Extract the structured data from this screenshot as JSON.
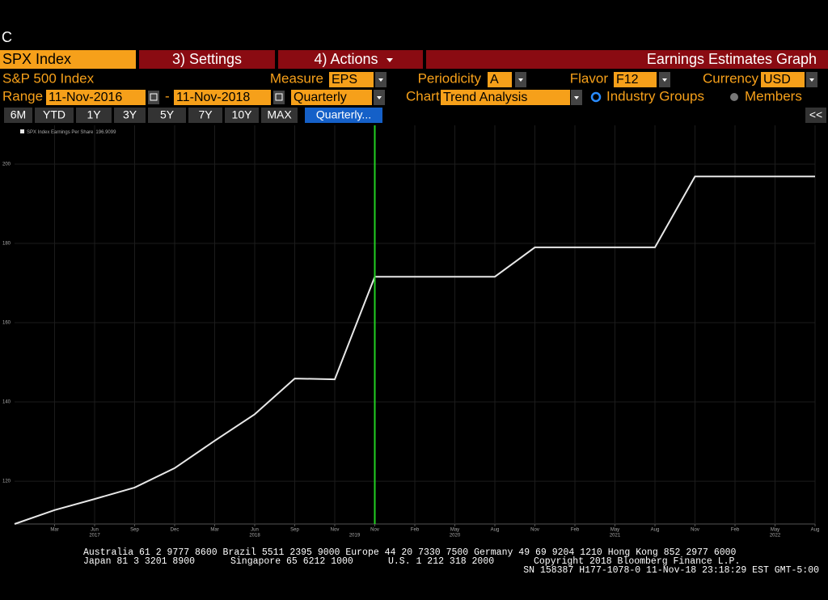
{
  "screen": {
    "corner_letter": "C",
    "tabs": {
      "security": "SPX Index",
      "settings": "3) Settings",
      "actions": "4) Actions",
      "function_title": "Earnings Estimates Graph"
    },
    "row2": {
      "security_name": "S&P 500 Index",
      "measure_label": "Measure",
      "measure": "EPS",
      "periodicity_label": "Periodicity",
      "periodicity": "A",
      "flavor_label": "Flavor",
      "flavor": "F12",
      "currency_label": "Currency",
      "currency": "USD"
    },
    "row3": {
      "range_label": "Range",
      "start": "11-Nov-2016",
      "dash": "-",
      "end": "11-Nov-2018",
      "frequency": "Quarterly",
      "chart_label": "Chart",
      "chart_kind": "Trend Analysis",
      "option_selected": "Industry Groups",
      "option_other": "Members"
    },
    "buttons": [
      "6M",
      "YTD",
      "1Y",
      "3Y",
      "5Y",
      "7Y",
      "10Y",
      "MAX"
    ],
    "active_button": "Quarterly...",
    "collapse": "<<",
    "footer": {
      "line1": "Australia 61 2 9777 8600 Brazil 5511 2395 9000 Europe 44 20 7330 7500 Germany 49 69 9204 1210 Hong Kong 852 2977 6000",
      "line2": [
        "Japan 81 3 3201 8900",
        "Singapore 65 6212 1000",
        "U.S. 1 212 318 2000",
        "Copyright 2018 Bloomberg Finance L.P."
      ],
      "line3": "SN 158387 H177-1078-0 11-Nov-18 23:18:29 EST  GMT-5:00"
    }
  },
  "chart_data": {
    "type": "line",
    "categories": [
      null,
      "Mar",
      "Jun",
      "Sep",
      "Dec",
      "Mar",
      "Jun",
      "Sep",
      "Nov",
      "Nov",
      "Feb",
      "May",
      "Aug",
      "Nov",
      "Feb",
      "May",
      "Aug",
      "Nov",
      "Feb",
      "May",
      "Aug"
    ],
    "years": [
      null,
      null,
      "2017",
      null,
      null,
      null,
      "2018",
      null,
      null,
      "2019",
      null,
      "2020",
      null,
      null,
      null,
      "2021",
      null,
      null,
      null,
      "2022",
      null
    ],
    "series": [
      {
        "name": "SPX Index Earnings Per Share",
        "color": "#e8e8e8",
        "values": [
          109.2,
          112.7,
          115.5,
          118.4,
          123.3,
          130.2,
          136.9,
          145.9,
          145.7,
          171.6,
          171.6,
          171.6,
          171.6,
          179.0,
          179.0,
          179.0,
          179.0,
          196.9,
          196.9,
          196.9,
          196.9
        ]
      }
    ],
    "legend_value": 196.9099,
    "ylim": [
      109.2,
      209.8
    ],
    "yticks": [
      120,
      140,
      160,
      180,
      200
    ],
    "grid": true,
    "vline_at": 9,
    "vline_color": "#22d022"
  }
}
